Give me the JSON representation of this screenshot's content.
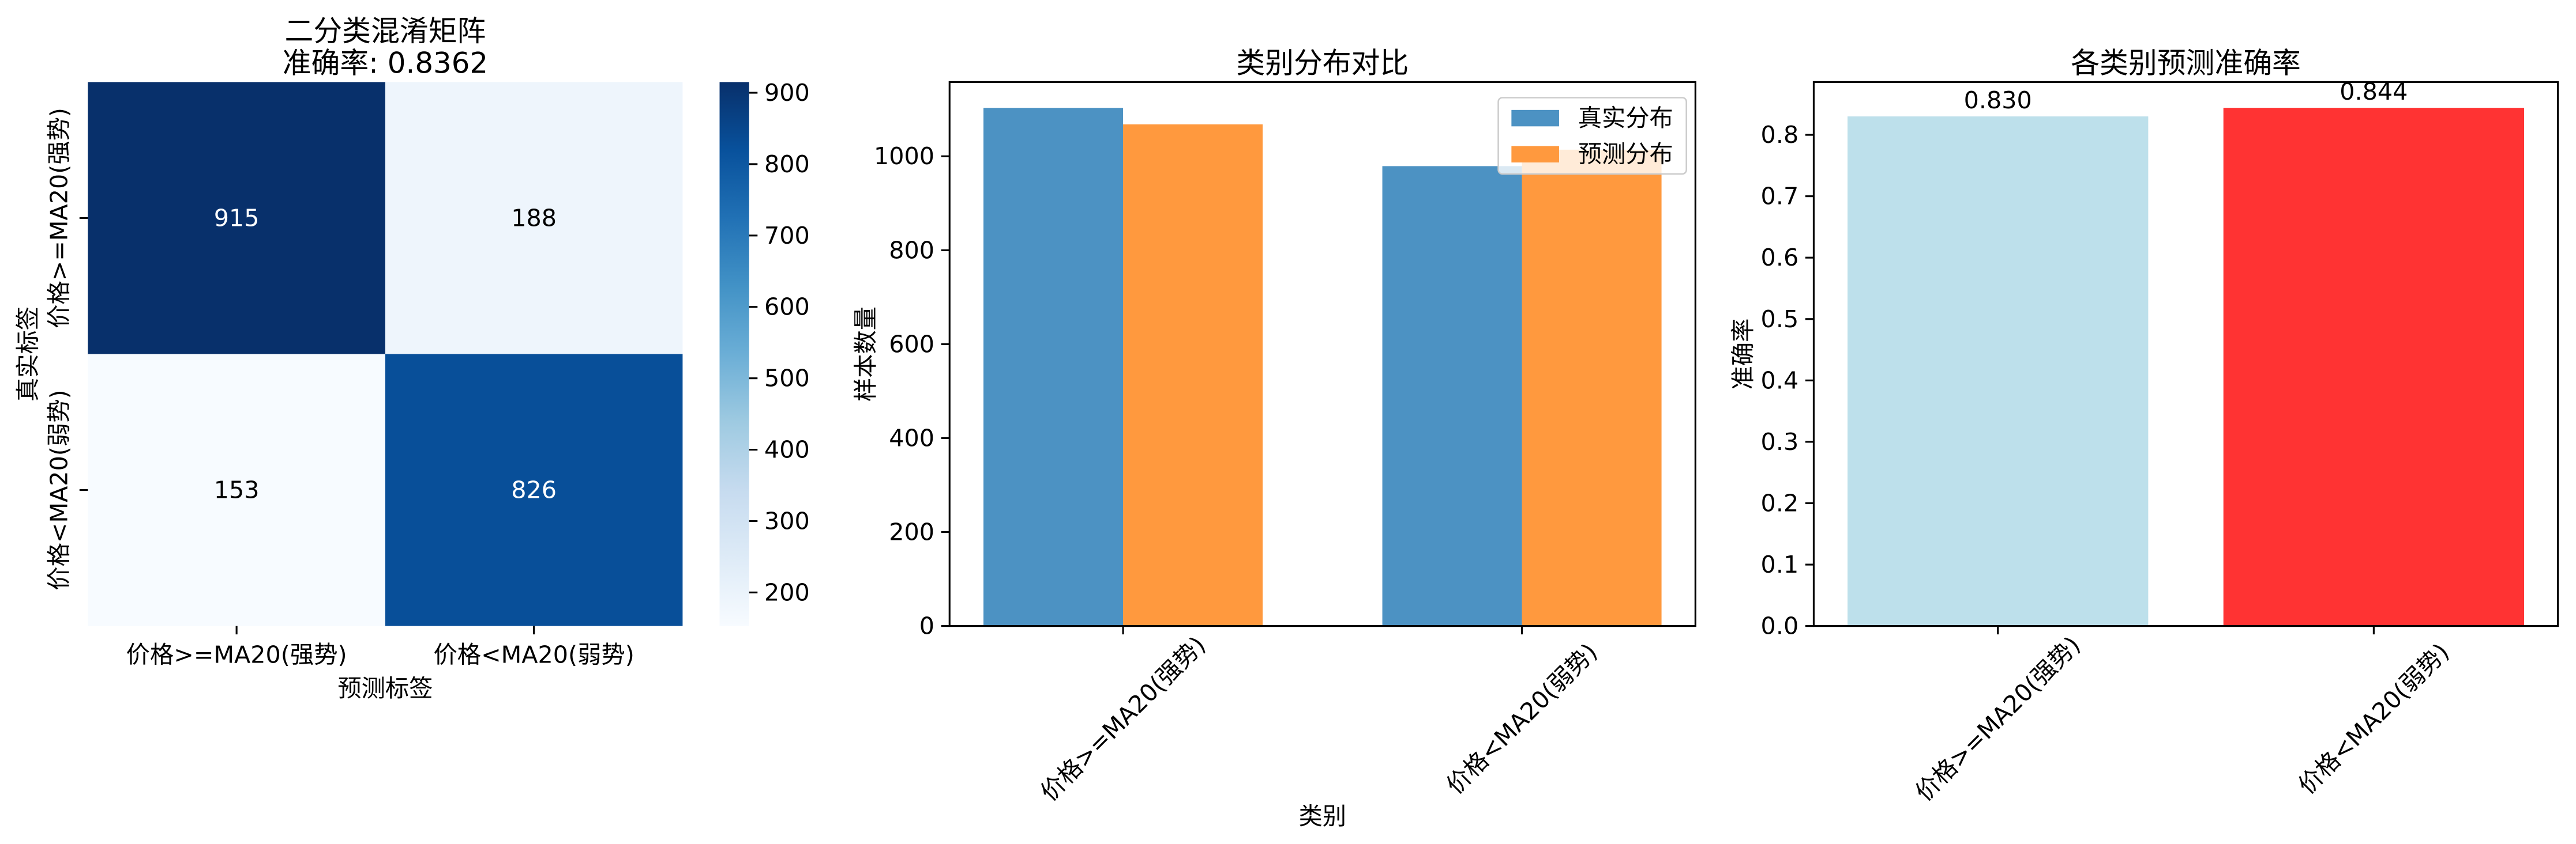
{
  "chart_data": [
    {
      "type": "heatmap",
      "title_lines": [
        "二分类混淆矩阵",
        "准确率: 0.8362"
      ],
      "xlabel": "预测标签",
      "ylabel": "真实标签",
      "x_categories": [
        "价格>=MA20(强势)",
        "价格<MA20(弱势)"
      ],
      "y_categories": [
        "价格>=MA20(强势)",
        "价格<MA20(弱势)"
      ],
      "matrix": [
        [
          915,
          188
        ],
        [
          153,
          826
        ]
      ],
      "colorbar_ticks": [
        "200",
        "300",
        "400",
        "500",
        "600",
        "700",
        "800",
        "900"
      ],
      "colormap": [
        "#f7fbff",
        "#deebf7",
        "#c6dbef",
        "#9ecae1",
        "#6baed6",
        "#4292c6",
        "#2171b5",
        "#08519c",
        "#08306b"
      ],
      "grid": false
    },
    {
      "type": "bar",
      "title": "类别分布对比",
      "xlabel": "类别",
      "ylabel": "样本数量",
      "categories": [
        "价格>=MA20(强势)",
        "价格<MA20(弱势)"
      ],
      "series": [
        {
          "name": "真实分布",
          "values": [
            1103,
            979
          ],
          "color": "#4c92c3"
        },
        {
          "name": "预测分布",
          "values": [
            1068,
            1014
          ],
          "color": "#ff993e"
        }
      ],
      "ylim": [
        0,
        1158
      ],
      "yticks": [
        "0",
        "200",
        "400",
        "600",
        "800",
        "1000"
      ],
      "legend": "top-right",
      "grid": false
    },
    {
      "type": "bar",
      "title": "各类别预测准确率",
      "ylabel": "准确率",
      "categories": [
        "价格>=MA20(强势)",
        "价格<MA20(弱势)"
      ],
      "values": [
        0.83,
        0.844
      ],
      "value_labels": [
        "0.830",
        "0.844"
      ],
      "colors": [
        "#bde0eb",
        "#ff3333"
      ],
      "ylim": [
        0,
        0.886
      ],
      "yticks": [
        "0.0",
        "0.1",
        "0.2",
        "0.3",
        "0.4",
        "0.5",
        "0.6",
        "0.7",
        "0.8"
      ],
      "grid": false
    }
  ]
}
